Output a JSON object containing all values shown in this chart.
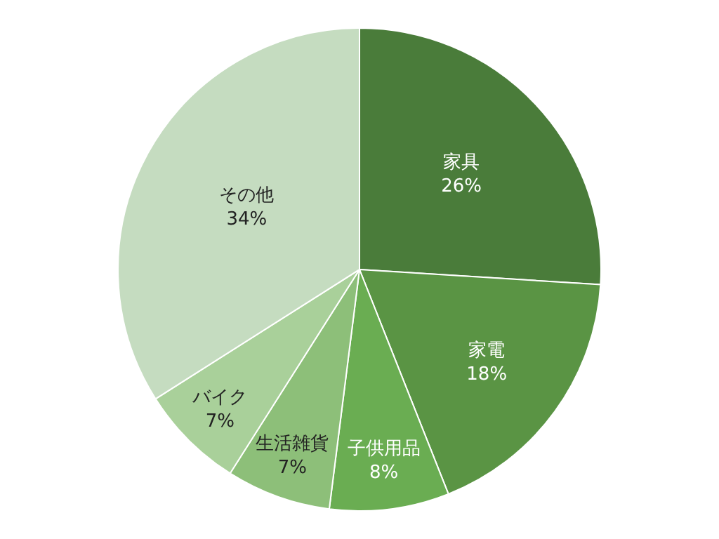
{
  "chart_data": {
    "type": "pie",
    "categories": [
      "家具",
      "家電",
      "子供用品",
      "生活雑貨",
      "バイク",
      "その他"
    ],
    "values": [
      26,
      18,
      8,
      7,
      7,
      34
    ],
    "value_labels": [
      "26%",
      "18%",
      "8%",
      "7%",
      "7%",
      "34%"
    ],
    "colors": [
      "#4a7c3a",
      "#5a9444",
      "#6aad52",
      "#8dbf79",
      "#a9d09a",
      "#c5dcc0"
    ],
    "legend": false
  }
}
